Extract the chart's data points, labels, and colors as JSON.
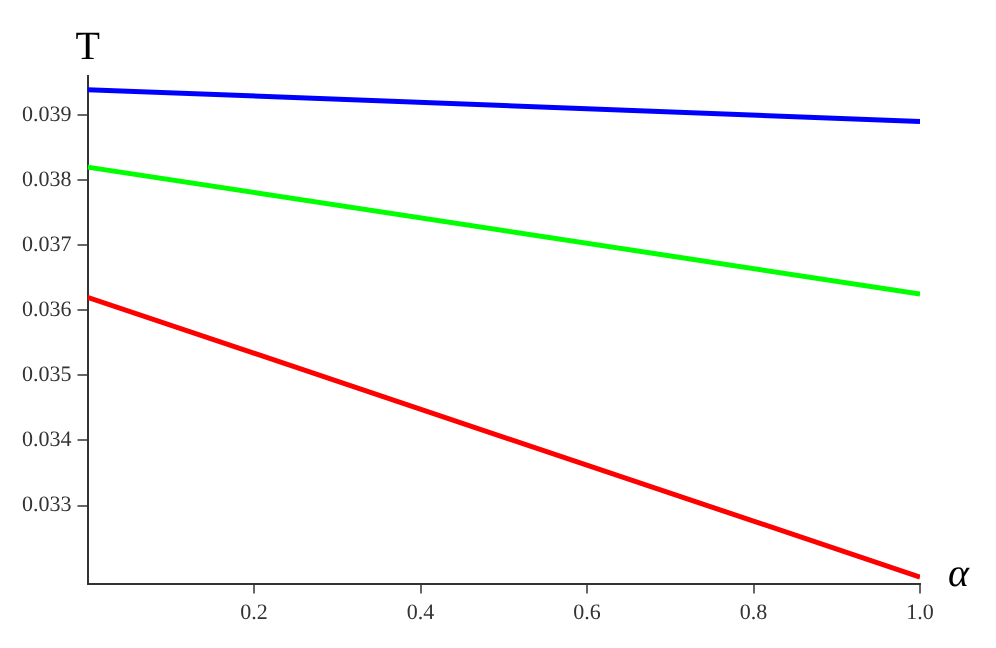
{
  "chart_data": {
    "type": "line",
    "xlabel": "α",
    "ylabel": "T",
    "x": [
      0,
      1
    ],
    "series": [
      {
        "color": "#0000ff",
        "values": [
          0.03939,
          0.0389
        ]
      },
      {
        "color": "#00ff00",
        "values": [
          0.0382,
          0.03625
        ]
      },
      {
        "color": "#ff0000",
        "values": [
          0.0362,
          0.0319
        ]
      }
    ],
    "xlim": [
      0,
      1
    ],
    "ylim": [
      0.0318,
      0.0396
    ],
    "xticks": [
      0.2,
      0.4,
      0.6,
      0.8,
      {
        "value": 1,
        "label": "1.0"
      }
    ],
    "yticks": [
      0.033,
      0.034,
      0.035,
      0.036,
      0.037,
      0.038,
      0.039
    ],
    "grid": false,
    "legend": false,
    "marker": "none",
    "line_style": "solid"
  }
}
